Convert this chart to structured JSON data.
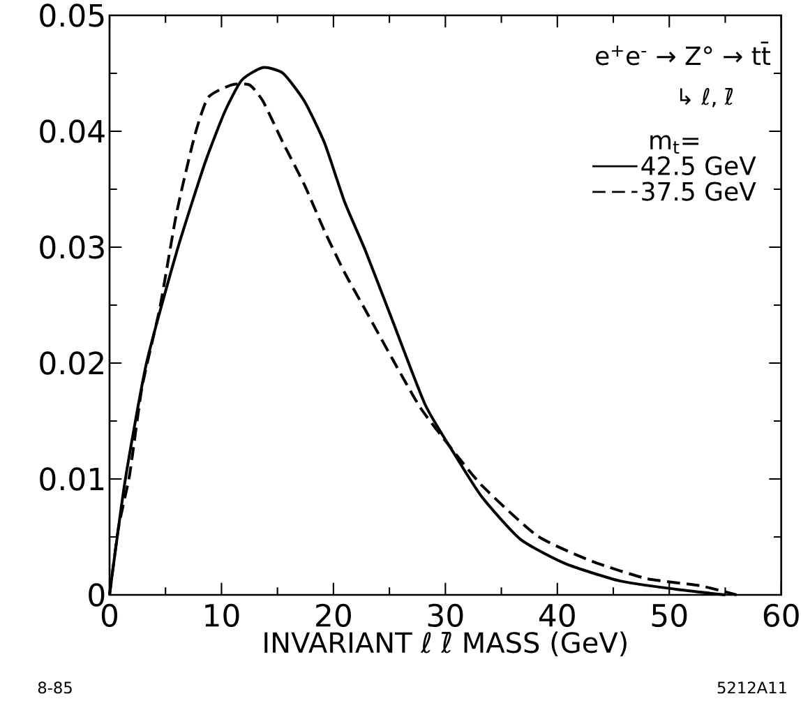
{
  "chart_data": {
    "type": "line",
    "xlabel": "INVARIANT ℓ ℓ̄ MASS   (GeV)",
    "legend_title": "m$_{t}$=",
    "annotations": [
      "e$^{+}$e$^{-}$ → Z° → tt̄",
      "↳ ℓ, ℓ̄",
      "8-85",
      "5212A11"
    ],
    "xlim": [
      0,
      60
    ],
    "ylim": [
      0,
      0.05
    ],
    "xticks": [
      0,
      {
        "value": 5,
        "label": null
      },
      10,
      {
        "value": 15,
        "label": null
      },
      20,
      {
        "value": 25,
        "label": null
      },
      30,
      {
        "value": 35,
        "label": null
      },
      40,
      {
        "value": 45,
        "label": null
      },
      50,
      {
        "value": 55,
        "label": null
      },
      60
    ],
    "yticks": [
      0,
      {
        "value": 0.005,
        "label": null
      },
      0.01,
      {
        "value": 0.015,
        "label": null
      },
      0.02,
      {
        "value": 0.025,
        "label": null
      },
      0.03,
      {
        "value": 0.035,
        "label": null
      },
      0.04,
      {
        "value": 0.045,
        "label": null
      },
      0.05
    ],
    "legend": "top right",
    "grid": false,
    "marker": "none",
    "series": [
      {
        "name": "42.5 GeV",
        "color": "#000000",
        "line_style": "solid",
        "x": [
          0,
          1.4,
          3.3,
          6.0,
          8.5,
          10.3,
          11.8,
          13.7,
          15.5,
          17.4,
          19.2,
          21.0,
          22.9,
          25.3,
          28.2,
          30.9,
          33.3,
          36.7,
          40.7,
          45.6,
          50.5,
          55
        ],
        "values": [
          0,
          0.0099,
          0.02,
          0.0296,
          0.0372,
          0.0417,
          0.0444,
          0.0455,
          0.045,
          0.0426,
          0.039,
          0.0339,
          0.0296,
          0.0236,
          0.0164,
          0.012,
          0.0084,
          0.0048,
          0.0027,
          0.0012,
          0.0005,
          0
        ]
      },
      {
        "name": "37.5 GeV",
        "color": "#000000",
        "line_style": "dashed",
        "x": [
          0,
          0.8,
          1.8,
          2.9,
          4.5,
          6.0,
          7.6,
          8.8,
          10.9,
          12.5,
          13.7,
          15.5,
          17.4,
          19.2,
          21.0,
          22.9,
          25.3,
          27.8,
          30.4,
          33.3,
          38.2,
          43.1,
          48.0,
          52.7,
          56
        ],
        "values": [
          0,
          0.0058,
          0.0104,
          0.0179,
          0.0248,
          0.033,
          0.0396,
          0.0429,
          0.044,
          0.044,
          0.0426,
          0.039,
          0.0354,
          0.0314,
          0.0278,
          0.0245,
          0.0203,
          0.0161,
          0.0128,
          0.0094,
          0.0051,
          0.0029,
          0.0014,
          0.0008,
          0
        ]
      }
    ]
  }
}
